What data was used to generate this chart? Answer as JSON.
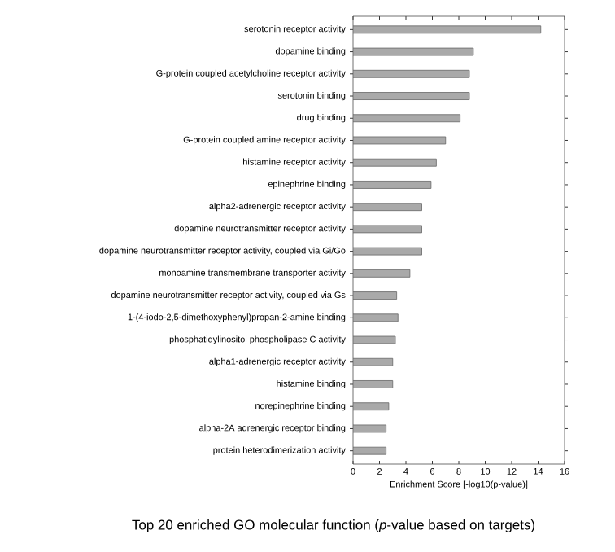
{
  "chart_data": {
    "type": "bar",
    "orientation": "horizontal",
    "xlabel": "Enrichment Score [-log10(p-value)]",
    "categories": [
      "serotonin receptor activity",
      "dopamine binding",
      "G-protein coupled acetylcholine receptor activity",
      "serotonin binding",
      "drug binding",
      "G-protein coupled amine receptor activity",
      "histamine receptor activity",
      "epinephrine binding",
      "alpha2-adrenergic receptor activity",
      "dopamine neurotransmitter receptor activity",
      "dopamine neurotransmitter receptor activity, coupled via Gi/Go",
      "monoamine transmembrane transporter activity",
      "dopamine neurotransmitter receptor activity, coupled via Gs",
      "1-(4-iodo-2,5-dimethoxyphenyl)propan-2-amine binding",
      "phosphatidylinositol phospholipase C activity",
      "alpha1-adrenergic receptor activity",
      "histamine binding",
      "norepinephrine binding",
      "alpha-2A adrenergic receptor binding",
      "protein heterodimerization activity"
    ],
    "values": [
      14.2,
      9.1,
      8.8,
      8.8,
      8.1,
      7.0,
      6.3,
      5.9,
      5.2,
      5.2,
      5.2,
      4.3,
      3.3,
      3.4,
      3.2,
      3.0,
      3.0,
      2.7,
      2.5,
      2.5
    ],
    "color": "#a9a9a9",
    "xlim": [
      0,
      16
    ],
    "xticks": [
      0,
      2,
      4,
      6,
      8,
      10,
      12,
      14,
      16
    ],
    "annotations": [
      "Top 20 enriched GO molecular function (*p*-value based on targets)"
    ]
  }
}
